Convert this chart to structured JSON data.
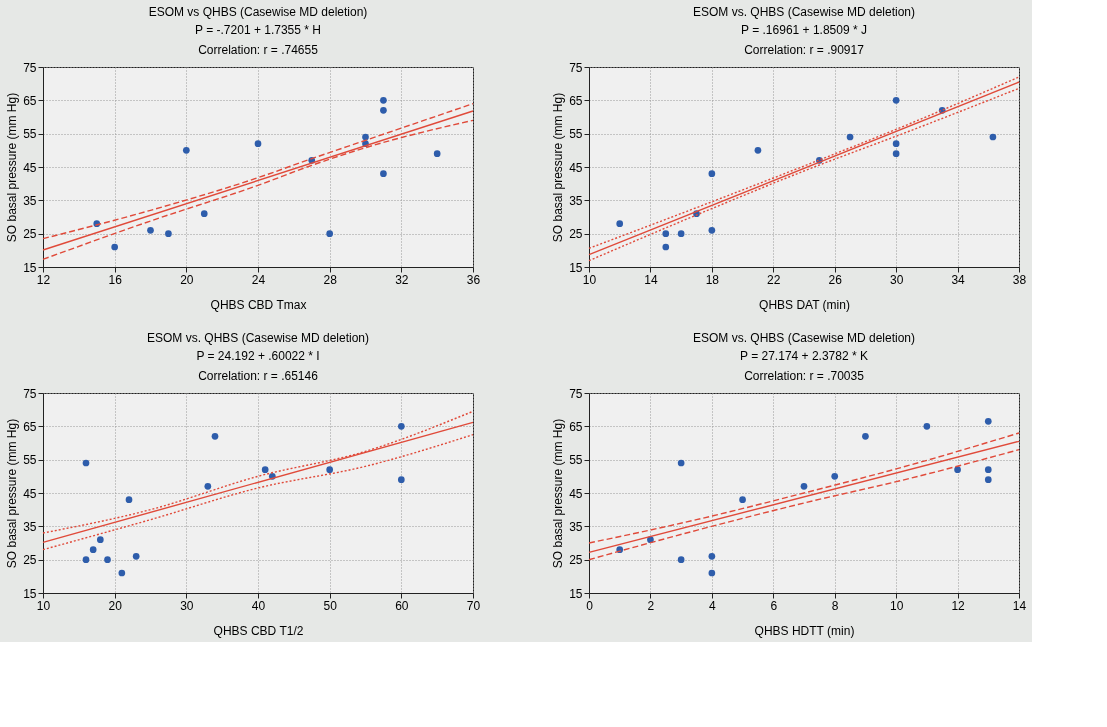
{
  "chart_data": [
    {
      "type": "scatter",
      "title": "ESOM vs QHBS (Casewise MD deletion)",
      "subtitle": "P = -.7201 + 1.7355 *      H",
      "annotations": [
        "Correlation: r = .74655"
      ],
      "xlabel": "QHBS CBD Tmax",
      "ylabel": "SO basal pressure (mm Hg)",
      "xlim": [
        12,
        36
      ],
      "xticks": [
        12,
        16,
        20,
        24,
        28,
        32,
        36
      ],
      "ylim": [
        15,
        75
      ],
      "yticks": [
        15,
        25,
        35,
        45,
        55,
        65,
        75
      ],
      "grid": true,
      "series": [
        {
          "type": "scatter",
          "marker": "circle",
          "color": "#2e5dab",
          "x": [
            15,
            16,
            18,
            19,
            20,
            21,
            24,
            27,
            28,
            30,
            30,
            31,
            31,
            31,
            34
          ],
          "values": [
            28,
            21,
            26,
            25,
            50,
            31,
            52,
            47,
            25,
            52,
            54,
            65,
            62,
            43,
            49
          ]
        },
        {
          "type": "line",
          "color": "#e04a3a",
          "line_style": "solid",
          "x": [
            12,
            36
          ],
          "values": [
            20.1,
            61.8
          ]
        },
        {
          "type": "line",
          "color": "#e04a3a",
          "line_style": "dashed",
          "x": [
            12,
            18,
            24,
            27,
            30,
            36
          ],
          "values": [
            23.5,
            32,
            41.8,
            47.5,
            53,
            64
          ]
        },
        {
          "type": "line",
          "color": "#e04a3a",
          "line_style": "dashed",
          "x": [
            12,
            18,
            24,
            27,
            30,
            36
          ],
          "values": [
            17.3,
            28.8,
            39.5,
            45.5,
            50.8,
            59
          ]
        }
      ]
    },
    {
      "type": "scatter",
      "title": "ESOM vs. QHBS (Casewise MD deletion)",
      "subtitle": "P = .16961 + 1.8509 *      J",
      "annotations": [
        "Correlation: r = .90917"
      ],
      "xlabel": "QHBS DAT (min)",
      "ylabel": "SO basal pressure (mm Hg)",
      "xlim": [
        10,
        38
      ],
      "xticks": [
        10,
        14,
        18,
        22,
        26,
        30,
        34,
        38
      ],
      "ylim": [
        15,
        75
      ],
      "yticks": [
        15,
        25,
        35,
        45,
        55,
        65,
        75
      ],
      "grid": true,
      "series": [
        {
          "type": "scatter",
          "marker": "circle",
          "color": "#2e5dab",
          "x": [
            12,
            15,
            15,
            16,
            17,
            18,
            18,
            21,
            25,
            27,
            30,
            30,
            30,
            33,
            36.3
          ],
          "values": [
            28,
            25,
            21,
            25,
            31,
            43,
            26,
            50,
            47,
            54,
            65,
            52,
            49,
            62,
            54
          ]
        },
        {
          "type": "line",
          "color": "#e04a3a",
          "line_style": "solid",
          "x": [
            10,
            38
          ],
          "values": [
            18.7,
            70.5
          ]
        },
        {
          "type": "line",
          "color": "#e04a3a",
          "line_style": "dotted",
          "x": [
            10,
            17,
            24,
            31,
            38
          ],
          "values": [
            20.6,
            32.8,
            45.3,
            58.2,
            72
          ]
        },
        {
          "type": "line",
          "color": "#e04a3a",
          "line_style": "dotted",
          "x": [
            10,
            17,
            24,
            31,
            38
          ],
          "values": [
            16.9,
            30.6,
            43.8,
            56,
            68.6
          ]
        }
      ]
    },
    {
      "type": "scatter",
      "title": "ESOM vs. QHBS (Casewise MD deletion)",
      "subtitle": "P = 24.192 + .60022 *      I",
      "annotations": [
        "Correlation: r = .65146"
      ],
      "xlabel": "QHBS CBD T1/2",
      "ylabel": "SO basal pressure (mm Hg)",
      "xlim": [
        10,
        70
      ],
      "xticks": [
        10,
        20,
        30,
        40,
        50,
        60,
        70
      ],
      "ylim": [
        15,
        75
      ],
      "yticks": [
        15,
        25,
        35,
        45,
        55,
        65,
        75
      ],
      "grid": true,
      "series": [
        {
          "type": "scatter",
          "marker": "circle",
          "color": "#2e5dab",
          "x": [
            16,
            16,
            17,
            18,
            19,
            21,
            22,
            23,
            33,
            34,
            41,
            42,
            50,
            60,
            60
          ],
          "values": [
            54,
            25,
            28,
            31,
            25,
            21,
            43,
            26,
            47,
            62,
            52,
            50,
            52,
            65,
            49
          ]
        },
        {
          "type": "line",
          "color": "#e04a3a",
          "line_style": "solid",
          "x": [
            10,
            70
          ],
          "values": [
            30.2,
            66.2
          ]
        },
        {
          "type": "line",
          "color": "#e04a3a",
          "line_style": "dotted",
          "x": [
            10,
            25,
            40,
            55,
            70
          ],
          "values": [
            33,
            40,
            50,
            57.5,
            69.5
          ]
        },
        {
          "type": "line",
          "color": "#e04a3a",
          "line_style": "dotted",
          "x": [
            10,
            25,
            40,
            55,
            70
          ],
          "values": [
            28,
            37,
            46.5,
            53,
            62.5
          ]
        }
      ]
    },
    {
      "type": "scatter",
      "title": "ESOM vs. QHBS (Casewise MD deletion)",
      "subtitle": "P = 27.174 + 2.3782 *      K",
      "annotations": [
        "Correlation: r = .70035"
      ],
      "xlabel": "QHBS HDTT (min)",
      "ylabel": "SO basal pressure (mm Hg)",
      "xlim": [
        0,
        14
      ],
      "xticks": [
        0,
        2,
        4,
        6,
        8,
        10,
        12,
        14
      ],
      "ylim": [
        15,
        75
      ],
      "yticks": [
        15,
        25,
        35,
        45,
        55,
        65,
        75
      ],
      "grid": true,
      "series": [
        {
          "type": "scatter",
          "marker": "circle",
          "color": "#2e5dab",
          "x": [
            1,
            2,
            3,
            3,
            4,
            4,
            5,
            7,
            8,
            9,
            11,
            12,
            13,
            13,
            13
          ],
          "values": [
            28,
            31,
            54,
            25,
            26,
            21,
            43,
            47,
            50,
            62,
            65,
            52,
            66.5,
            52,
            49
          ]
        },
        {
          "type": "line",
          "color": "#e04a3a",
          "line_style": "solid",
          "x": [
            0,
            14
          ],
          "values": [
            27.2,
            60.5
          ]
        },
        {
          "type": "line",
          "color": "#e04a3a",
          "line_style": "dashed",
          "x": [
            0,
            3.5,
            7,
            10.5,
            14
          ],
          "values": [
            30,
            37,
            45,
            53.5,
            63
          ]
        },
        {
          "type": "line",
          "color": "#e04a3a",
          "line_style": "dashed",
          "x": [
            0,
            3.5,
            7,
            10.5,
            14
          ],
          "values": [
            25,
            33.8,
            42,
            49.5,
            58
          ]
        }
      ]
    }
  ]
}
